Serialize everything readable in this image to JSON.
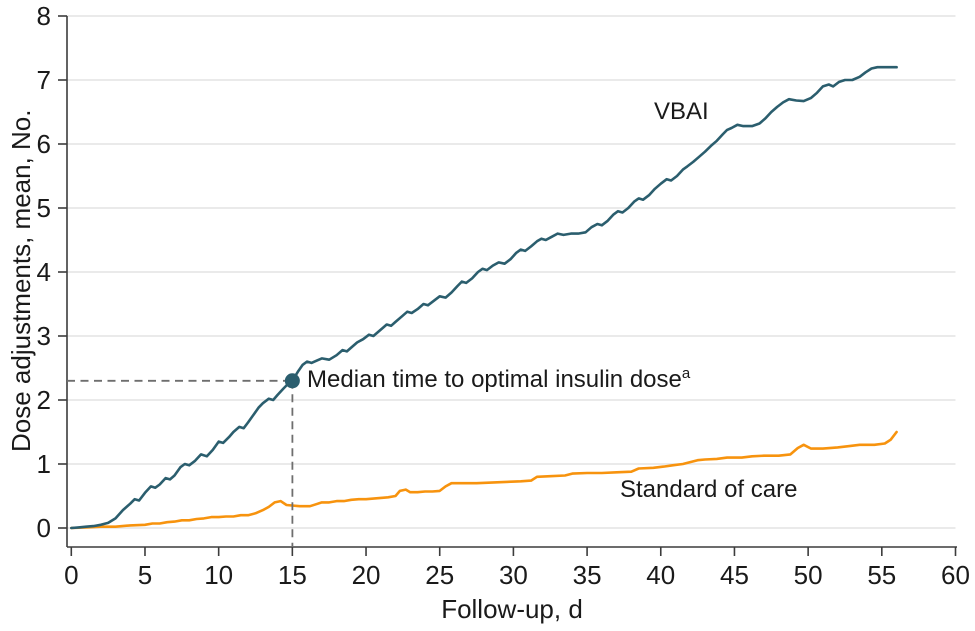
{
  "chart_data": {
    "type": "line",
    "title": "",
    "xlabel": "Follow-up, d",
    "ylabel": "Dose adjustments, mean, No.",
    "xlim": [
      0,
      60
    ],
    "ylim": [
      0,
      8
    ],
    "x_ticks": [
      0,
      5,
      10,
      15,
      20,
      25,
      30,
      35,
      40,
      45,
      50,
      55,
      60
    ],
    "y_ticks": [
      0,
      1,
      2,
      3,
      4,
      5,
      6,
      7,
      8
    ],
    "grid": "horizontal",
    "legend_position": "inline-labels",
    "annotation": {
      "text": "Median time to optimal insulin dose",
      "superscript": "a",
      "x": 15,
      "y": 2.3
    },
    "series": [
      {
        "name": "Standard of care",
        "color": "#F7930E",
        "points": [
          [
            0,
            0
          ],
          [
            1,
            0.01
          ],
          [
            2,
            0.02
          ],
          [
            3,
            0.02
          ],
          [
            4,
            0.04
          ],
          [
            5,
            0.05
          ],
          [
            5.5,
            0.07
          ],
          [
            6,
            0.07
          ],
          [
            6.5,
            0.09
          ],
          [
            7,
            0.1
          ],
          [
            7.5,
            0.12
          ],
          [
            8,
            0.12
          ],
          [
            8.5,
            0.14
          ],
          [
            9,
            0.15
          ],
          [
            9.5,
            0.17
          ],
          [
            10,
            0.17
          ],
          [
            10.5,
            0.18
          ],
          [
            11,
            0.18
          ],
          [
            11.5,
            0.2
          ],
          [
            12,
            0.2
          ],
          [
            12.5,
            0.23
          ],
          [
            13,
            0.28
          ],
          [
            13.4,
            0.33
          ],
          [
            13.8,
            0.4
          ],
          [
            14.2,
            0.42
          ],
          [
            14.6,
            0.36
          ],
          [
            15.5,
            0.34
          ],
          [
            16.2,
            0.34
          ],
          [
            16.6,
            0.37
          ],
          [
            17,
            0.4
          ],
          [
            17.5,
            0.4
          ],
          [
            18,
            0.42
          ],
          [
            18.5,
            0.42
          ],
          [
            19,
            0.44
          ],
          [
            19.5,
            0.45
          ],
          [
            20,
            0.45
          ],
          [
            20.5,
            0.46
          ],
          [
            21,
            0.47
          ],
          [
            21.5,
            0.48
          ],
          [
            22,
            0.5
          ],
          [
            22.3,
            0.58
          ],
          [
            22.7,
            0.6
          ],
          [
            23,
            0.56
          ],
          [
            23.5,
            0.56
          ],
          [
            24,
            0.57
          ],
          [
            24.5,
            0.57
          ],
          [
            25,
            0.58
          ],
          [
            25.4,
            0.65
          ],
          [
            25.8,
            0.7
          ],
          [
            26.5,
            0.7
          ],
          [
            27.5,
            0.7
          ],
          [
            28.5,
            0.71
          ],
          [
            29.5,
            0.72
          ],
          [
            30.5,
            0.73
          ],
          [
            31.2,
            0.74
          ],
          [
            31.6,
            0.8
          ],
          [
            32.5,
            0.81
          ],
          [
            33.5,
            0.82
          ],
          [
            34,
            0.85
          ],
          [
            35,
            0.86
          ],
          [
            36,
            0.86
          ],
          [
            37,
            0.87
          ],
          [
            38,
            0.88
          ],
          [
            38.5,
            0.93
          ],
          [
            39.5,
            0.94
          ],
          [
            40.2,
            0.96
          ],
          [
            40.8,
            0.98
          ],
          [
            41.5,
            1.0
          ],
          [
            42,
            1.03
          ],
          [
            42.5,
            1.06
          ],
          [
            43,
            1.07
          ],
          [
            43.8,
            1.08
          ],
          [
            44.5,
            1.1
          ],
          [
            45.5,
            1.1
          ],
          [
            46.2,
            1.12
          ],
          [
            47,
            1.13
          ],
          [
            48,
            1.13
          ],
          [
            48.8,
            1.15
          ],
          [
            49.3,
            1.25
          ],
          [
            49.7,
            1.3
          ],
          [
            50.2,
            1.24
          ],
          [
            51,
            1.24
          ],
          [
            52,
            1.26
          ],
          [
            52.8,
            1.28
          ],
          [
            53.5,
            1.3
          ],
          [
            54.5,
            1.3
          ],
          [
            55.2,
            1.32
          ],
          [
            55.6,
            1.38
          ],
          [
            56,
            1.5
          ]
        ]
      },
      {
        "name": "VBAI",
        "color": "#2B5E6E",
        "points": [
          [
            0,
            0
          ],
          [
            0.5,
            0.01
          ],
          [
            1,
            0.02
          ],
          [
            1.5,
            0.03
          ],
          [
            2,
            0.05
          ],
          [
            2.5,
            0.08
          ],
          [
            3,
            0.15
          ],
          [
            3.5,
            0.28
          ],
          [
            4,
            0.38
          ],
          [
            4.3,
            0.45
          ],
          [
            4.6,
            0.43
          ],
          [
            5,
            0.55
          ],
          [
            5.4,
            0.65
          ],
          [
            5.7,
            0.63
          ],
          [
            6,
            0.68
          ],
          [
            6.4,
            0.78
          ],
          [
            6.7,
            0.76
          ],
          [
            7,
            0.82
          ],
          [
            7.4,
            0.95
          ],
          [
            7.7,
            1.0
          ],
          [
            8,
            0.98
          ],
          [
            8.4,
            1.05
          ],
          [
            8.8,
            1.15
          ],
          [
            9.2,
            1.12
          ],
          [
            9.6,
            1.22
          ],
          [
            10,
            1.35
          ],
          [
            10.3,
            1.33
          ],
          [
            10.7,
            1.42
          ],
          [
            11,
            1.5
          ],
          [
            11.4,
            1.58
          ],
          [
            11.7,
            1.56
          ],
          [
            12,
            1.65
          ],
          [
            12.4,
            1.78
          ],
          [
            12.7,
            1.88
          ],
          [
            13,
            1.95
          ],
          [
            13.4,
            2.02
          ],
          [
            13.7,
            2.0
          ],
          [
            14,
            2.08
          ],
          [
            14.4,
            2.18
          ],
          [
            14.7,
            2.25
          ],
          [
            15,
            2.3
          ],
          [
            15.4,
            2.45
          ],
          [
            15.7,
            2.55
          ],
          [
            16,
            2.6
          ],
          [
            16.3,
            2.58
          ],
          [
            16.7,
            2.62
          ],
          [
            17,
            2.65
          ],
          [
            17.5,
            2.63
          ],
          [
            18,
            2.7
          ],
          [
            18.4,
            2.78
          ],
          [
            18.7,
            2.76
          ],
          [
            19,
            2.82
          ],
          [
            19.4,
            2.9
          ],
          [
            19.8,
            2.95
          ],
          [
            20.2,
            3.02
          ],
          [
            20.5,
            3.0
          ],
          [
            21,
            3.1
          ],
          [
            21.4,
            3.18
          ],
          [
            21.7,
            3.16
          ],
          [
            22,
            3.22
          ],
          [
            22.4,
            3.3
          ],
          [
            22.8,
            3.38
          ],
          [
            23.1,
            3.36
          ],
          [
            23.5,
            3.42
          ],
          [
            23.9,
            3.5
          ],
          [
            24.2,
            3.48
          ],
          [
            24.6,
            3.55
          ],
          [
            25,
            3.62
          ],
          [
            25.4,
            3.6
          ],
          [
            25.8,
            3.68
          ],
          [
            26.2,
            3.78
          ],
          [
            26.5,
            3.85
          ],
          [
            26.8,
            3.83
          ],
          [
            27.2,
            3.9
          ],
          [
            27.6,
            4.0
          ],
          [
            27.9,
            4.05
          ],
          [
            28.2,
            4.03
          ],
          [
            28.6,
            4.1
          ],
          [
            29,
            4.15
          ],
          [
            29.4,
            4.13
          ],
          [
            29.8,
            4.2
          ],
          [
            30.2,
            4.3
          ],
          [
            30.5,
            4.35
          ],
          [
            30.8,
            4.33
          ],
          [
            31.2,
            4.4
          ],
          [
            31.6,
            4.48
          ],
          [
            31.9,
            4.52
          ],
          [
            32.2,
            4.5
          ],
          [
            32.6,
            4.55
          ],
          [
            33,
            4.6
          ],
          [
            33.4,
            4.58
          ],
          [
            33.9,
            4.6
          ],
          [
            34.4,
            4.6
          ],
          [
            34.9,
            4.62
          ],
          [
            35.3,
            4.7
          ],
          [
            35.7,
            4.75
          ],
          [
            36,
            4.73
          ],
          [
            36.4,
            4.8
          ],
          [
            36.8,
            4.9
          ],
          [
            37.1,
            4.95
          ],
          [
            37.4,
            4.93
          ],
          [
            37.8,
            5.0
          ],
          [
            38.2,
            5.1
          ],
          [
            38.5,
            5.15
          ],
          [
            38.8,
            5.13
          ],
          [
            39.2,
            5.2
          ],
          [
            39.6,
            5.3
          ],
          [
            40,
            5.38
          ],
          [
            40.4,
            5.45
          ],
          [
            40.7,
            5.43
          ],
          [
            41.1,
            5.5
          ],
          [
            41.5,
            5.6
          ],
          [
            41.8,
            5.65
          ],
          [
            42.2,
            5.72
          ],
          [
            42.6,
            5.8
          ],
          [
            43,
            5.88
          ],
          [
            43.4,
            5.97
          ],
          [
            43.8,
            6.05
          ],
          [
            44.2,
            6.15
          ],
          [
            44.5,
            6.22
          ],
          [
            44.8,
            6.25
          ],
          [
            45.2,
            6.3
          ],
          [
            45.6,
            6.28
          ],
          [
            46.2,
            6.28
          ],
          [
            46.7,
            6.32
          ],
          [
            47.1,
            6.4
          ],
          [
            47.5,
            6.5
          ],
          [
            47.9,
            6.58
          ],
          [
            48.3,
            6.65
          ],
          [
            48.7,
            6.7
          ],
          [
            49.2,
            6.68
          ],
          [
            49.7,
            6.67
          ],
          [
            50.2,
            6.72
          ],
          [
            50.6,
            6.8
          ],
          [
            51,
            6.9
          ],
          [
            51.4,
            6.93
          ],
          [
            51.7,
            6.9
          ],
          [
            52.1,
            6.97
          ],
          [
            52.5,
            7.0
          ],
          [
            53,
            7.0
          ],
          [
            53.5,
            7.05
          ],
          [
            53.9,
            7.12
          ],
          [
            54.3,
            7.18
          ],
          [
            54.7,
            7.2
          ],
          [
            55.3,
            7.2
          ],
          [
            56,
            7.2
          ]
        ]
      }
    ]
  },
  "colors": {
    "vbai_line": "#2B5E6E",
    "standard_of_care_line": "#F7930E",
    "gridline": "#E4E4E4",
    "axis": "#3C3C3C",
    "dashed_guide": "#6E6E6E",
    "text": "#1A1A1A",
    "background": "#FFFFFF"
  }
}
